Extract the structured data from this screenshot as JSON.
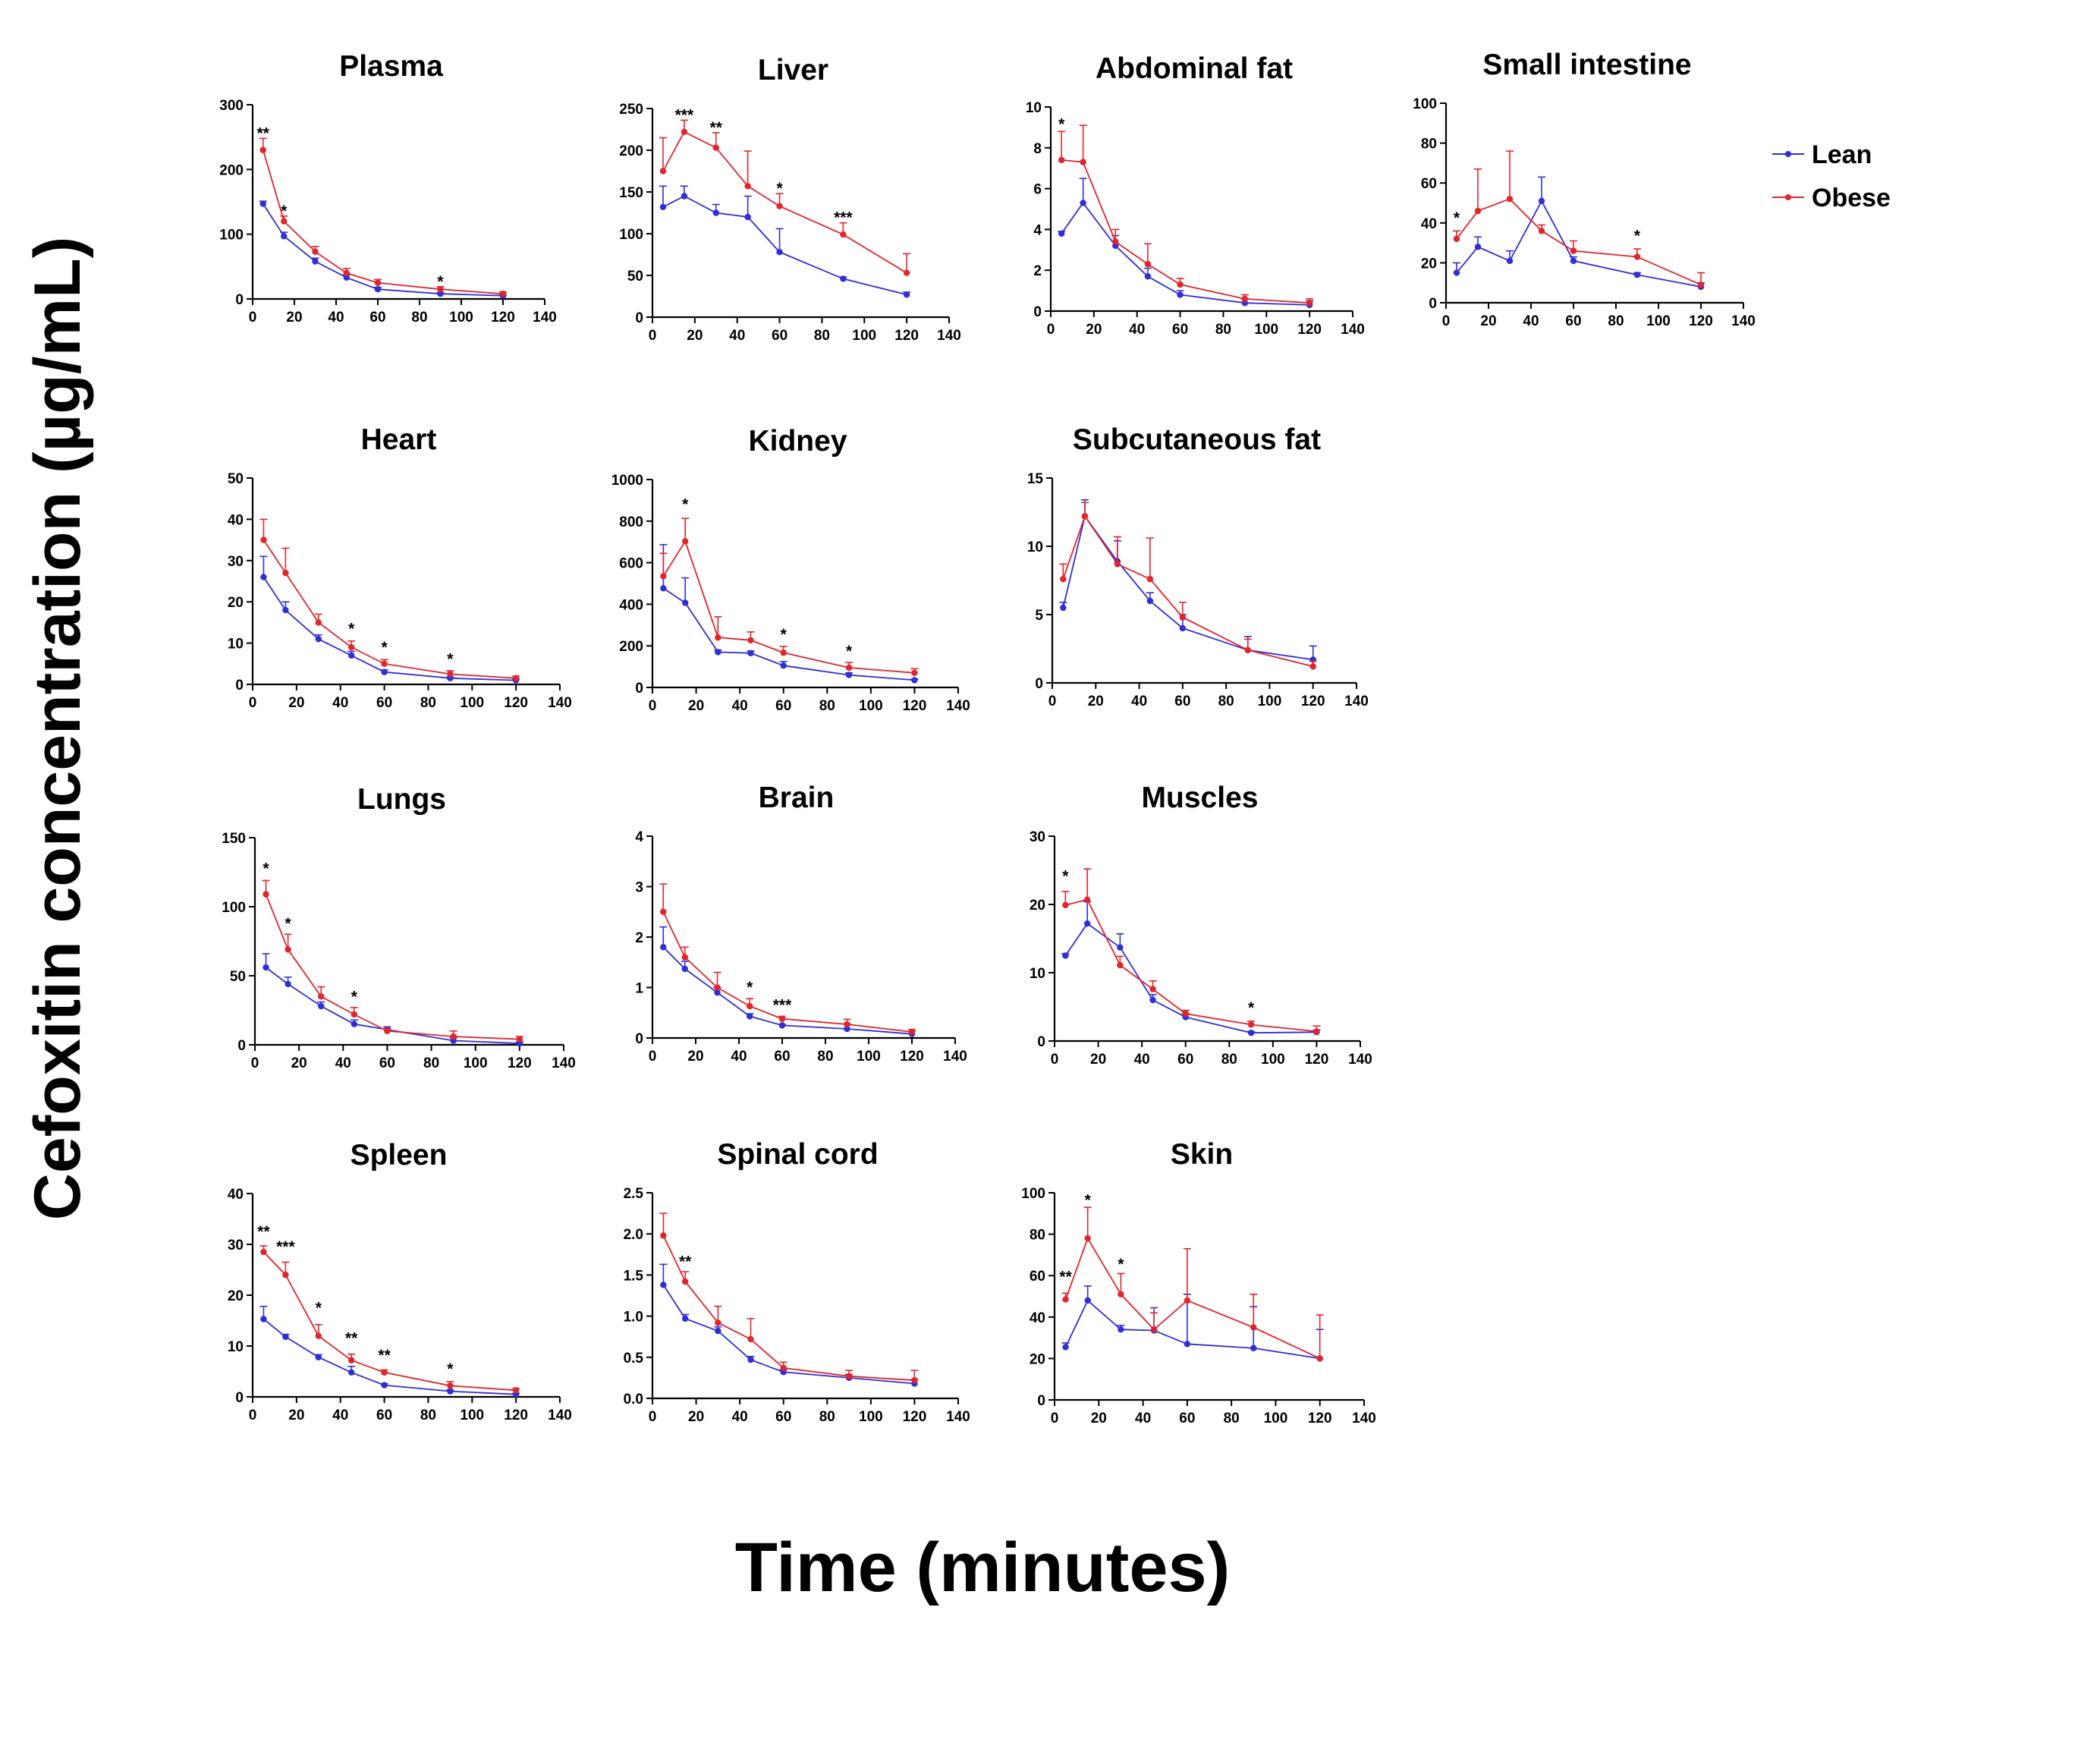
{
  "figure": {
    "ylabel": "Cefoxitin concentration (µg/mL)",
    "xlabel": "Time (minutes)"
  },
  "legend": [
    {
      "label": "Lean",
      "color": "#2f2fd6"
    },
    {
      "label": "Obese",
      "color": "#e0262b"
    }
  ],
  "colors": {
    "lean": "#2f2fd6",
    "obese": "#e0262b",
    "axis": "#000000"
  },
  "chart_data": [
    {
      "type": "line",
      "title": "Plasma",
      "x": [
        5,
        15,
        30,
        45,
        60,
        90,
        120
      ],
      "xlim": [
        0,
        140
      ],
      "xticks": [
        0,
        20,
        40,
        60,
        80,
        100,
        120,
        140
      ],
      "ylim": [
        0,
        300
      ],
      "yticks": [
        0,
        100,
        200,
        300
      ],
      "series": [
        {
          "name": "Lean",
          "values": [
            147,
            97,
            58,
            33,
            15,
            8,
            5
          ],
          "err": [
            4,
            6,
            5,
            4,
            3,
            2,
            1
          ]
        },
        {
          "name": "Obese",
          "values": [
            230,
            120,
            73,
            40,
            25,
            15,
            8
          ],
          "err": [
            18,
            8,
            8,
            7,
            5,
            4,
            3
          ]
        }
      ],
      "stars": [
        {
          "x": 5,
          "y": 248,
          "text": "**"
        },
        {
          "x": 15,
          "y": 128,
          "text": "*"
        },
        {
          "x": 90,
          "y": 19,
          "text": "*"
        }
      ]
    },
    {
      "type": "line",
      "title": "Liver",
      "x": [
        5,
        15,
        30,
        45,
        60,
        90,
        120
      ],
      "xlim": [
        0,
        140
      ],
      "xticks": [
        0,
        20,
        40,
        60,
        80,
        100,
        120,
        140
      ],
      "ylim": [
        0,
        250
      ],
      "yticks": [
        0,
        50,
        100,
        150,
        200,
        250
      ],
      "series": [
        {
          "name": "Lean",
          "values": [
            132,
            145,
            125,
            120,
            78,
            46,
            27
          ],
          "err": [
            25,
            12,
            10,
            25,
            28,
            2,
            3
          ]
        },
        {
          "name": "Obese",
          "values": [
            175,
            222,
            203,
            157,
            133,
            99,
            53
          ],
          "err": [
            40,
            14,
            18,
            42,
            15,
            14,
            23
          ]
        }
      ],
      "stars": [
        {
          "x": 15,
          "y": 236,
          "text": "***"
        },
        {
          "x": 30,
          "y": 221,
          "text": "**"
        },
        {
          "x": 60,
          "y": 148,
          "text": "*"
        },
        {
          "x": 90,
          "y": 113,
          "text": "***"
        }
      ]
    },
    {
      "type": "line",
      "title": "Abdominal fat",
      "x": [
        5,
        15,
        30,
        45,
        60,
        90,
        120
      ],
      "xlim": [
        0,
        140
      ],
      "xticks": [
        0,
        20,
        40,
        60,
        80,
        100,
        120,
        140
      ],
      "ylim": [
        0,
        10
      ],
      "yticks": [
        0,
        2,
        4,
        6,
        8,
        10
      ],
      "series": [
        {
          "name": "Lean",
          "values": [
            3.8,
            5.3,
            3.2,
            1.7,
            0.8,
            0.4,
            0.3
          ],
          "err": [
            0.1,
            1.2,
            0.5,
            0.4,
            0.2,
            0.2,
            0.2
          ]
        },
        {
          "name": "Obese",
          "values": [
            7.4,
            7.3,
            3.4,
            2.3,
            1.3,
            0.6,
            0.4
          ],
          "err": [
            1.4,
            1.8,
            0.6,
            1.0,
            0.3,
            0.2,
            0.2
          ]
        }
      ],
      "stars": [
        {
          "x": 5,
          "y": 8.9,
          "text": "*"
        }
      ]
    },
    {
      "type": "line",
      "title": "Small intestine",
      "x": [
        5,
        15,
        30,
        45,
        60,
        90,
        120
      ],
      "xlim": [
        0,
        140
      ],
      "xticks": [
        0,
        20,
        40,
        60,
        80,
        100,
        120,
        140
      ],
      "ylim": [
        0,
        100
      ],
      "yticks": [
        0,
        20,
        40,
        60,
        80,
        100
      ],
      "series": [
        {
          "name": "Lean",
          "values": [
            15,
            28,
            21,
            51,
            21,
            14,
            8
          ],
          "err": [
            5,
            5,
            5,
            12,
            2,
            1,
            2
          ]
        },
        {
          "name": "Obese",
          "values": [
            32,
            46,
            52,
            36,
            26,
            23,
            9
          ],
          "err": [
            4,
            21,
            24,
            3,
            5,
            4,
            6
          ]
        }
      ],
      "stars": [
        {
          "x": 5,
          "y": 40,
          "text": "*"
        },
        {
          "x": 90,
          "y": 31,
          "text": "*"
        }
      ]
    },
    {
      "type": "line",
      "title": "Heart",
      "x": [
        5,
        15,
        30,
        45,
        60,
        90,
        120
      ],
      "xlim": [
        0,
        140
      ],
      "xticks": [
        0,
        20,
        40,
        60,
        80,
        100,
        120,
        140
      ],
      "ylim": [
        0,
        50
      ],
      "yticks": [
        0,
        10,
        20,
        30,
        40,
        50
      ],
      "series": [
        {
          "name": "Lean",
          "values": [
            26,
            18,
            11,
            7,
            3,
            1.5,
            1
          ],
          "err": [
            5,
            2,
            1,
            1,
            0.5,
            0.3,
            0.3
          ]
        },
        {
          "name": "Obese",
          "values": [
            35,
            27,
            15,
            9,
            5,
            2.5,
            1.5
          ],
          "err": [
            5,
            6,
            2,
            1.5,
            1,
            0.8,
            0.5
          ]
        }
      ],
      "stars": [
        {
          "x": 45,
          "y": 12.2,
          "text": "*"
        },
        {
          "x": 60,
          "y": 7.7,
          "text": "*"
        },
        {
          "x": 90,
          "y": 4.9,
          "text": "*"
        }
      ]
    },
    {
      "type": "line",
      "title": "Kidney",
      "x": [
        5,
        15,
        30,
        45,
        60,
        90,
        120
      ],
      "xlim": [
        0,
        140
      ],
      "xticks": [
        0,
        20,
        40,
        60,
        80,
        100,
        120,
        140
      ],
      "ylim": [
        0,
        1000
      ],
      "yticks": [
        0,
        200,
        400,
        600,
        800,
        1000
      ],
      "series": [
        {
          "name": "Lean",
          "values": [
            477,
            407,
            170,
            165,
            105,
            60,
            35
          ],
          "err": [
            210,
            120,
            10,
            10,
            20,
            10,
            5
          ]
        },
        {
          "name": "Obese",
          "values": [
            535,
            703,
            240,
            227,
            167,
            95,
            70
          ],
          "err": [
            110,
            110,
            100,
            40,
            30,
            25,
            20
          ]
        }
      ],
      "stars": [
        {
          "x": 15,
          "y": 855,
          "text": "*"
        },
        {
          "x": 60,
          "y": 230,
          "text": "*"
        },
        {
          "x": 90,
          "y": 150,
          "text": "*"
        }
      ]
    },
    {
      "type": "line",
      "title": "Subcutaneous fat",
      "x": [
        5,
        15,
        30,
        45,
        60,
        90,
        120
      ],
      "xlim": [
        0,
        140
      ],
      "xticks": [
        0,
        20,
        40,
        60,
        80,
        100,
        120,
        140
      ],
      "ylim": [
        0,
        15
      ],
      "yticks": [
        0,
        5,
        10,
        15
      ],
      "series": [
        {
          "name": "Lean",
          "values": [
            5.5,
            12.2,
            8.9,
            6.0,
            4.0,
            2.4,
            1.7
          ],
          "err": [
            0.4,
            1.2,
            1.5,
            0.6,
            1.0,
            1.0,
            1.0
          ]
        },
        {
          "name": "Obese",
          "values": [
            7.6,
            12.2,
            8.7,
            7.6,
            4.8,
            2.4,
            1.2
          ],
          "err": [
            1.1,
            1.0,
            2.0,
            3.0,
            1.1,
            0.8,
            0.4
          ]
        }
      ],
      "stars": []
    },
    {
      "type": "line",
      "title": "Lungs",
      "x": [
        5,
        15,
        30,
        45,
        60,
        90,
        120
      ],
      "xlim": [
        0,
        140
      ],
      "xticks": [
        0,
        20,
        40,
        60,
        80,
        100,
        120,
        140
      ],
      "ylim": [
        0,
        150
      ],
      "yticks": [
        0,
        50,
        100,
        150
      ],
      "series": [
        {
          "name": "Lean",
          "values": [
            56,
            44,
            28,
            15,
            11,
            3,
            1
          ],
          "err": [
            10,
            5,
            3,
            3,
            2,
            2,
            1
          ]
        },
        {
          "name": "Obese",
          "values": [
            109,
            69,
            35,
            22,
            10,
            6,
            4
          ],
          "err": [
            10,
            11,
            7,
            5,
            2,
            4,
            2
          ]
        }
      ],
      "stars": [
        {
          "x": 5,
          "y": 124,
          "text": "*"
        },
        {
          "x": 15,
          "y": 84,
          "text": "*"
        },
        {
          "x": 45,
          "y": 31,
          "text": "*"
        }
      ]
    },
    {
      "type": "line",
      "title": "Brain",
      "x": [
        5,
        15,
        30,
        45,
        60,
        90,
        120
      ],
      "xlim": [
        0,
        140
      ],
      "xticks": [
        0,
        20,
        40,
        60,
        80,
        100,
        120,
        140
      ],
      "ylim": [
        0,
        4
      ],
      "yticks": [
        0,
        1,
        2,
        3,
        4
      ],
      "series": [
        {
          "name": "Lean",
          "values": [
            1.8,
            1.37,
            0.9,
            0.43,
            0.25,
            0.18,
            0.08
          ],
          "err": [
            0.4,
            0.15,
            0.1,
            0.05,
            0.02,
            0.1,
            0.05
          ]
        },
        {
          "name": "Obese",
          "values": [
            2.5,
            1.6,
            1.0,
            0.63,
            0.38,
            0.27,
            0.12
          ],
          "err": [
            0.55,
            0.2,
            0.3,
            0.15,
            0.05,
            0.1,
            0.05
          ]
        }
      ],
      "stars": [
        {
          "x": 45,
          "y": 0.9,
          "text": "*"
        },
        {
          "x": 60,
          "y": 0.55,
          "text": "***"
        }
      ]
    },
    {
      "type": "line",
      "title": "Muscles",
      "x": [
        5,
        15,
        30,
        45,
        60,
        90,
        120
      ],
      "xlim": [
        0,
        140
      ],
      "xticks": [
        0,
        20,
        40,
        60,
        80,
        100,
        120,
        140
      ],
      "ylim": [
        0,
        30
      ],
      "yticks": [
        0,
        10,
        20,
        30
      ],
      "series": [
        {
          "name": "Lean",
          "values": [
            12.5,
            17.2,
            13.7,
            6.0,
            3.5,
            1.2,
            1.3
          ],
          "err": [
            0.3,
            3.2,
            2.0,
            0.8,
            0.5,
            0.2,
            0.3
          ]
        },
        {
          "name": "Obese",
          "values": [
            19.9,
            20.7,
            11.1,
            7.6,
            4.0,
            2.4,
            1.4
          ],
          "err": [
            2.0,
            4.5,
            1.3,
            1.2,
            0.5,
            0.5,
            0.8
          ]
        }
      ],
      "stars": [
        {
          "x": 5,
          "y": 23.4,
          "text": "*"
        },
        {
          "x": 90,
          "y": 4.1,
          "text": "*"
        }
      ]
    },
    {
      "type": "line",
      "title": "Spleen",
      "x": [
        5,
        15,
        30,
        45,
        60,
        90,
        120
      ],
      "xlim": [
        0,
        140
      ],
      "xticks": [
        0,
        20,
        40,
        60,
        80,
        100,
        120,
        140
      ],
      "ylim": [
        0,
        40
      ],
      "yticks": [
        0,
        10,
        20,
        30,
        40
      ],
      "series": [
        {
          "name": "Lean",
          "values": [
            15.3,
            11.8,
            7.8,
            4.8,
            2.3,
            1.1,
            0.5
          ],
          "err": [
            2.5,
            0.5,
            0.5,
            1.2,
            0.3,
            0.3,
            0.2
          ]
        },
        {
          "name": "Obese",
          "values": [
            28.5,
            24.0,
            12.0,
            7.2,
            4.8,
            2.2,
            1.3
          ],
          "err": [
            1.2,
            2.5,
            2.2,
            1.2,
            0.5,
            0.8,
            0.4
          ]
        }
      ],
      "stars": [
        {
          "x": 5,
          "y": 31.5,
          "text": "**"
        },
        {
          "x": 15,
          "y": 28.5,
          "text": "***"
        },
        {
          "x": 30,
          "y": 16.5,
          "text": "*"
        },
        {
          "x": 45,
          "y": 10.5,
          "text": "**"
        },
        {
          "x": 60,
          "y": 7.2,
          "text": "**"
        },
        {
          "x": 90,
          "y": 4.5,
          "text": "*"
        }
      ]
    },
    {
      "type": "line",
      "title": "Spinal cord",
      "x": [
        5,
        15,
        30,
        45,
        60,
        90,
        120
      ],
      "xlim": [
        0,
        140
      ],
      "xticks": [
        0,
        20,
        40,
        60,
        80,
        100,
        120,
        140
      ],
      "ylim": [
        0,
        2.5
      ],
      "yticks": [
        0.0,
        0.5,
        1.0,
        1.5,
        2.0,
        2.5
      ],
      "ytick_labels": [
        "0.0",
        "0.5",
        "1.0",
        "1.5",
        "2.0",
        "2.5"
      ],
      "series": [
        {
          "name": "Lean",
          "values": [
            1.38,
            0.97,
            0.82,
            0.47,
            0.32,
            0.25,
            0.18
          ],
          "err": [
            0.25,
            0.05,
            0.05,
            0.04,
            0.03,
            0.04,
            0.05
          ]
        },
        {
          "name": "Obese",
          "values": [
            1.98,
            1.42,
            0.92,
            0.72,
            0.37,
            0.27,
            0.22
          ],
          "err": [
            0.27,
            0.12,
            0.2,
            0.25,
            0.07,
            0.07,
            0.12
          ]
        }
      ],
      "stars": [
        {
          "x": 15,
          "y": 1.6,
          "text": "**"
        }
      ]
    },
    {
      "type": "line",
      "title": "Skin",
      "x": [
        5,
        15,
        30,
        45,
        60,
        90,
        120
      ],
      "xlim": [
        0,
        140
      ],
      "xticks": [
        0,
        20,
        40,
        60,
        80,
        100,
        120,
        140
      ],
      "ylim": [
        0,
        100
      ],
      "yticks": [
        0,
        20,
        40,
        60,
        80,
        100
      ],
      "series": [
        {
          "name": "Lean",
          "values": [
            25.5,
            48,
            34,
            33.5,
            27,
            25,
            20
          ],
          "err": [
            2,
            7,
            2,
            11,
            24,
            20,
            14
          ]
        },
        {
          "name": "Obese",
          "values": [
            48.5,
            78,
            51,
            34,
            48,
            35,
            20
          ],
          "err": [
            3,
            15,
            10,
            8,
            25,
            16,
            21
          ]
        }
      ],
      "stars": [
        {
          "x": 5,
          "y": 57,
          "text": "**"
        },
        {
          "x": 15,
          "y": 94,
          "text": "*"
        },
        {
          "x": 30,
          "y": 63,
          "text": "*"
        }
      ]
    }
  ]
}
